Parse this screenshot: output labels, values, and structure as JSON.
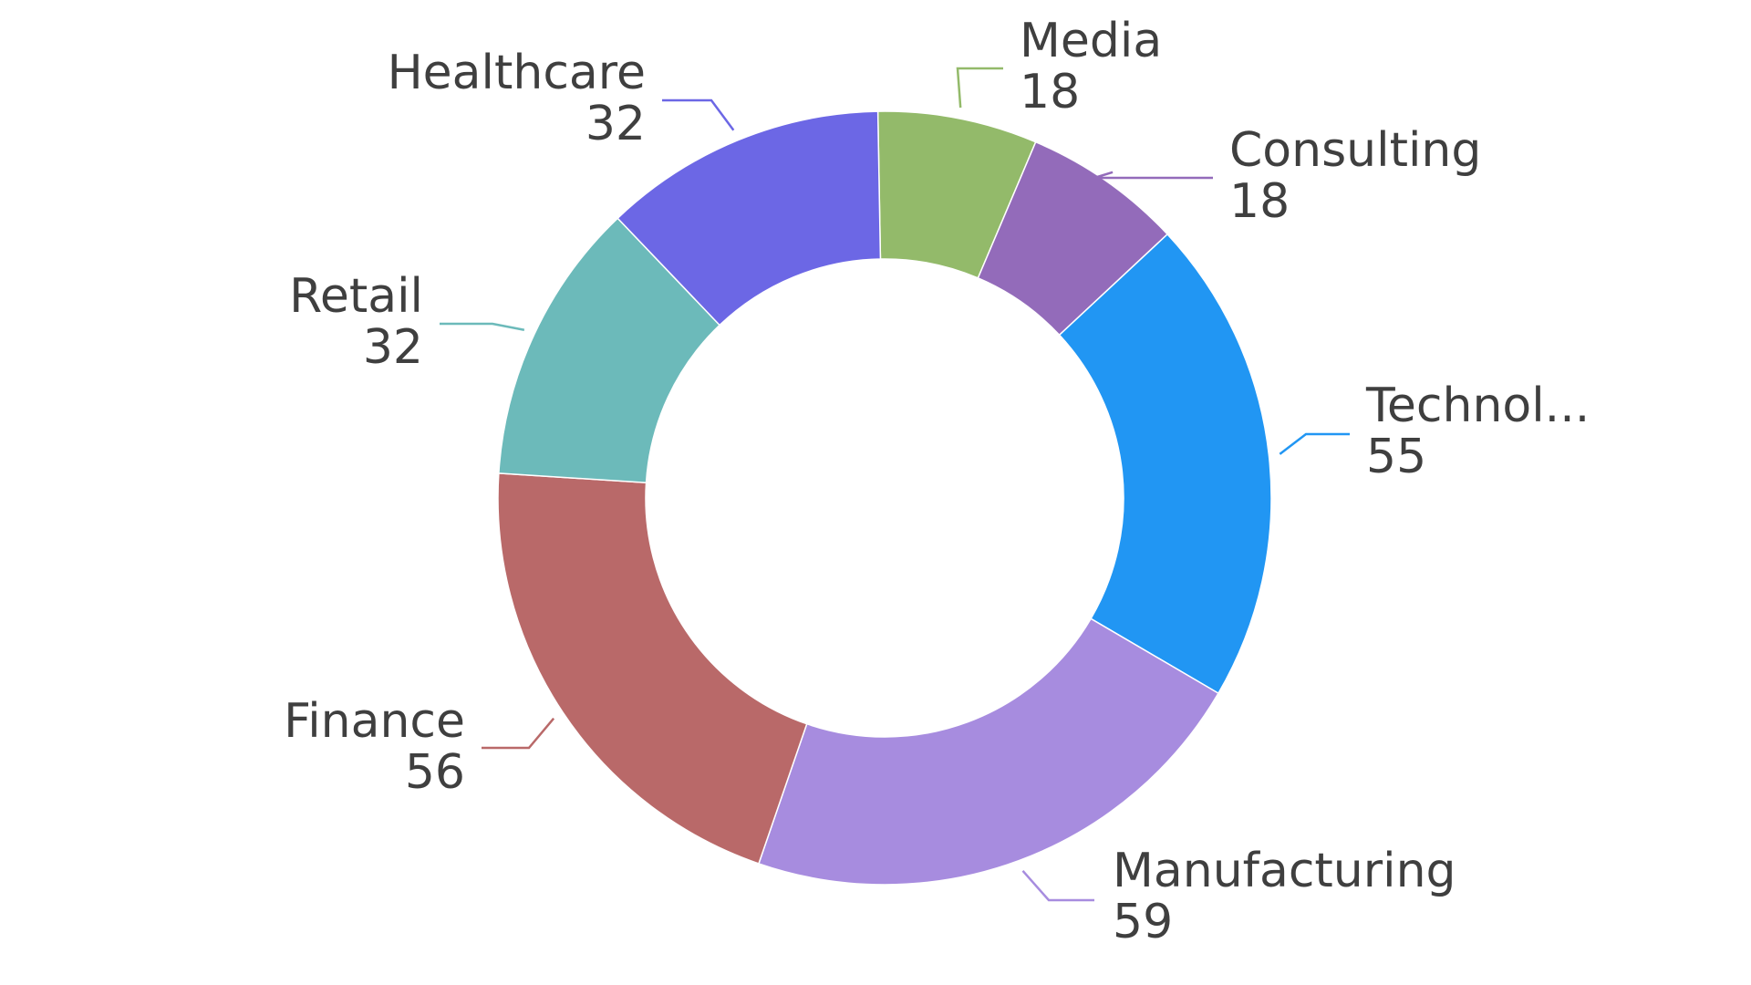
{
  "chart_data": {
    "type": "pie",
    "donut": true,
    "title": "",
    "legend": "none",
    "slices": [
      {
        "label": "Media",
        "value": 18,
        "color": "#93BA6A"
      },
      {
        "label": "Consulting",
        "value": 18,
        "color": "#936BBA"
      },
      {
        "label": "Technol...",
        "value": 55,
        "color": "#2196F3"
      },
      {
        "label": "Manufacturing",
        "value": 59,
        "color": "#A78CDF"
      },
      {
        "label": "Finance",
        "value": 56,
        "color": "#B96969"
      },
      {
        "label": "Retail",
        "value": 32,
        "color": "#6CBABA"
      },
      {
        "label": "Healthcare",
        "value": 32,
        "color": "#6C67E5"
      }
    ]
  }
}
